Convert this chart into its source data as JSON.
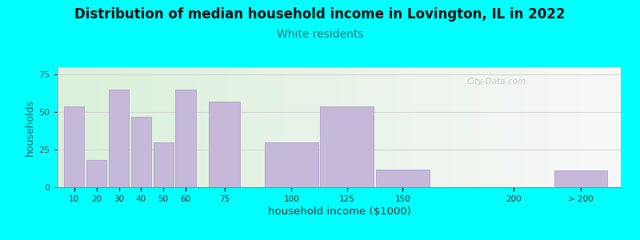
{
  "title": "Distribution of median household income in Lovington, IL in 2022",
  "subtitle": "White residents",
  "xlabel": "household income ($1000)",
  "ylabel": "households",
  "background_color": "#00FFFF",
  "bar_color": "#c5b8d8",
  "bar_edge_color": "#b0a0cc",
  "values": [
    54,
    18,
    65,
    47,
    30,
    65,
    57,
    30,
    54,
    12,
    0,
    11
  ],
  "bar_lefts": [
    10,
    20,
    30,
    40,
    50,
    60,
    75,
    100,
    125,
    150,
    200,
    230
  ],
  "bar_widths": [
    9,
    9,
    9,
    9,
    9,
    9,
    14,
    24,
    24,
    24,
    24,
    24
  ],
  "xlim": [
    7,
    260
  ],
  "ylim": [
    0,
    80
  ],
  "yticks": [
    0,
    25,
    50,
    75
  ],
  "xtick_labels": [
    "10",
    "20",
    "30",
    "40",
    "50",
    "60",
    "75",
    "100",
    "125",
    "150",
    "200",
    "> 200"
  ],
  "xtick_positions": [
    14.5,
    24.5,
    34.5,
    44.5,
    54.5,
    64.5,
    82.0,
    112.0,
    137.0,
    162.0,
    212.0,
    242.0
  ],
  "title_fontsize": 12,
  "subtitle_color": "#1a7a7a",
  "subtitle_fontsize": 10,
  "watermark": "City-Data.com",
  "ylabel_color": "#006666",
  "xlabel_color": "#333333"
}
